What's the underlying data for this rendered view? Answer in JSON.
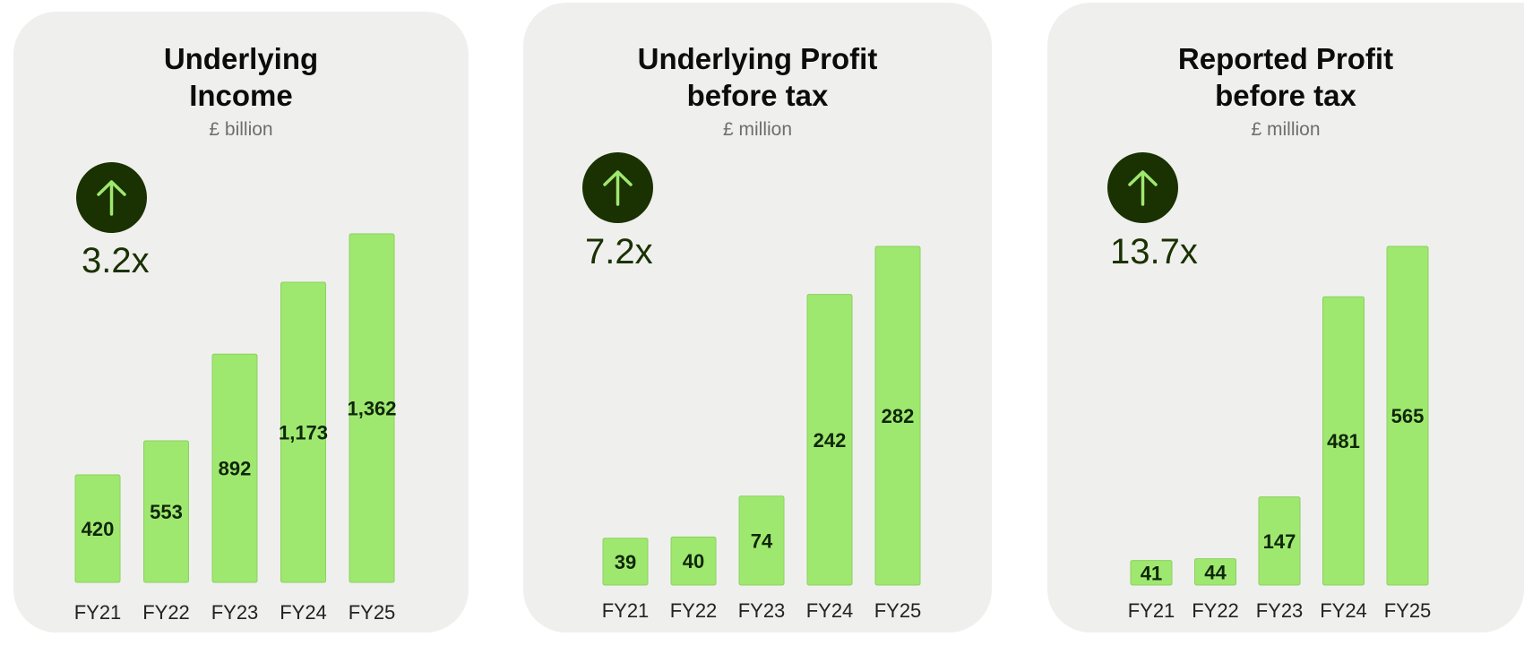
{
  "colors": {
    "card_bg": "#eff0ee",
    "bar": "#9fe870",
    "badge_bg": "#1a3101",
    "arrow": "#9fe870",
    "text_dark": "#1a3101"
  },
  "chart_data": [
    {
      "type": "bar",
      "title": "Underlying\nIncome",
      "subtitle": "£ billion",
      "multiplier": "3.2x",
      "trend_icon": "arrow-up-icon",
      "categories": [
        "FY21",
        "FY22",
        "FY23",
        "FY24",
        "FY25"
      ],
      "values": [
        420,
        553,
        892,
        1173,
        1362
      ],
      "value_labels": [
        "420",
        "553",
        "892",
        "1,173",
        "1,362"
      ],
      "ylim": [
        0,
        1400
      ],
      "grid": false
    },
    {
      "type": "bar",
      "title": "Underlying Profit\nbefore tax",
      "subtitle": "£ million",
      "multiplier": "7.2x",
      "trend_icon": "arrow-up-icon",
      "categories": [
        "FY21",
        "FY22",
        "FY23",
        "FY24",
        "FY25"
      ],
      "values": [
        39,
        40,
        74,
        242,
        282
      ],
      "value_labels": [
        "39",
        "40",
        "74",
        "242",
        "282"
      ],
      "ylim": [
        0,
        290
      ],
      "grid": false
    },
    {
      "type": "bar",
      "title": "Reported Profit\nbefore tax",
      "subtitle": "£ million",
      "multiplier": "13.7x",
      "trend_icon": "arrow-up-icon",
      "categories": [
        "FY21",
        "FY22",
        "FY23",
        "FY24",
        "FY25"
      ],
      "values": [
        41,
        44,
        147,
        481,
        565
      ],
      "value_labels": [
        "41",
        "44",
        "147",
        "481",
        "565"
      ],
      "ylim": [
        0,
        580
      ],
      "grid": false
    }
  ]
}
